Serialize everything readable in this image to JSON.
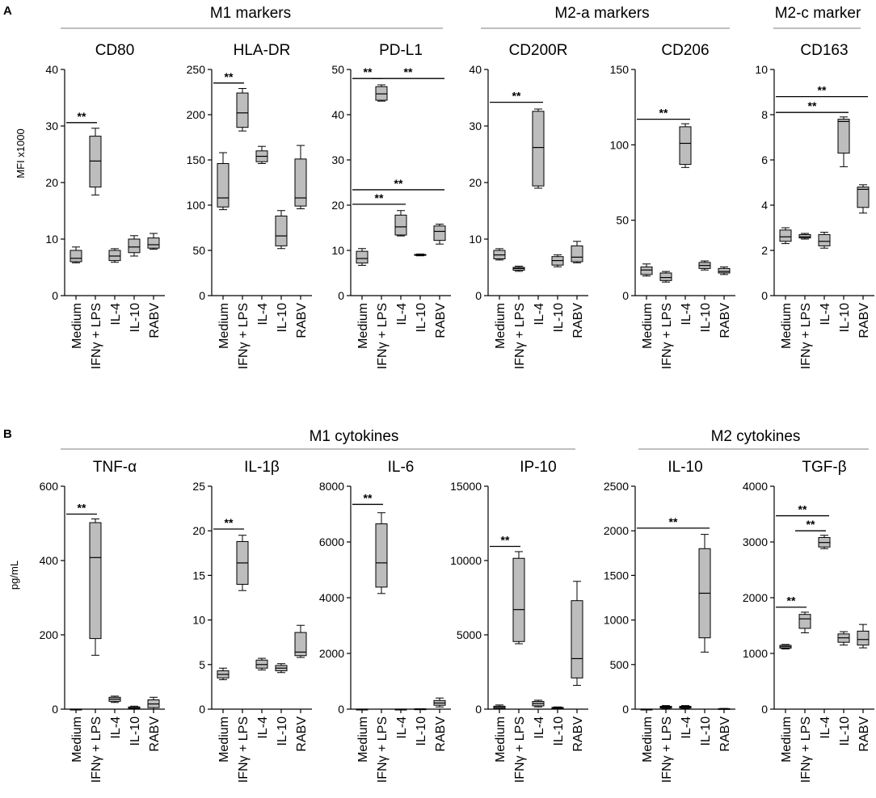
{
  "figure": {
    "category_labels": [
      "Medium",
      "IFNγ + LPS",
      "IL-4",
      "IL-10",
      "RABV"
    ]
  },
  "panels": [
    {
      "letter": "A",
      "ylabel": "MFI x1000",
      "groups": [
        {
          "label": "M1 markers"
        },
        {
          "label": "M2-a markers"
        },
        {
          "label": "M2-c marker"
        }
      ]
    },
    {
      "letter": "B",
      "ylabel": "pg/mL",
      "groups": [
        {
          "label": "M1 cytokines"
        },
        {
          "label": "M2 cytokines"
        }
      ]
    }
  ],
  "chart_data": [
    {
      "type": "box",
      "panel": "A",
      "title": "CD80",
      "ylim": [
        0,
        40
      ],
      "yticks": [
        0,
        10,
        20,
        30,
        40
      ],
      "categories": [
        "Medium",
        "IFNγ + LPS",
        "IL-4",
        "IL-10",
        "RABV"
      ],
      "boxes": [
        {
          "min": 5.8,
          "q1": 6.0,
          "median": 6.6,
          "q3": 8.0,
          "max": 8.6
        },
        {
          "min": 17.8,
          "q1": 19.2,
          "median": 23.8,
          "q3": 28.2,
          "max": 29.6
        },
        {
          "min": 5.9,
          "q1": 6.2,
          "median": 7.0,
          "q3": 8.0,
          "max": 8.3
        },
        {
          "min": 7.0,
          "q1": 7.6,
          "median": 8.6,
          "q3": 10.0,
          "max": 10.6
        },
        {
          "min": 8.2,
          "q1": 8.4,
          "median": 9.0,
          "q3": 10.2,
          "max": 11.0
        }
      ],
      "significance": [
        {
          "from": 0,
          "to": 1,
          "label": "**",
          "y": 30.6
        }
      ]
    },
    {
      "type": "box",
      "panel": "A",
      "title": "HLA-DR",
      "ylim": [
        0,
        250
      ],
      "yticks": [
        0,
        50,
        100,
        150,
        200,
        250
      ],
      "categories": [
        "Medium",
        "IFNγ + LPS",
        "IL-4",
        "IL-10",
        "RABV"
      ],
      "boxes": [
        {
          "min": 95,
          "q1": 98,
          "median": 108,
          "q3": 146,
          "max": 158
        },
        {
          "min": 182,
          "q1": 186,
          "median": 202,
          "q3": 224,
          "max": 229
        },
        {
          "min": 146,
          "q1": 148,
          "median": 154,
          "q3": 160,
          "max": 165
        },
        {
          "min": 52,
          "q1": 55,
          "median": 66,
          "q3": 88,
          "max": 94
        },
        {
          "min": 96,
          "q1": 99,
          "median": 108,
          "q3": 151,
          "max": 166
        }
      ],
      "significance": [
        {
          "from": 0,
          "to": 1,
          "label": "**",
          "y": 235
        }
      ]
    },
    {
      "type": "box",
      "panel": "A",
      "title": "PD-L1",
      "ylim": [
        0,
        50
      ],
      "yticks": [
        0,
        10,
        20,
        30,
        40,
        50
      ],
      "categories": [
        "Medium",
        "IFNγ + LPS",
        "IL-4",
        "IL-10",
        "RABV"
      ],
      "boxes": [
        {
          "min": 6.7,
          "q1": 7.2,
          "median": 8.2,
          "q3": 9.8,
          "max": 10.4
        },
        {
          "min": 43.0,
          "q1": 43.2,
          "median": 44.6,
          "q3": 46.2,
          "max": 46.6
        },
        {
          "min": 13.2,
          "q1": 13.4,
          "median": 15.2,
          "q3": 17.8,
          "max": 18.8
        },
        {
          "min": 8.8,
          "q1": 8.9,
          "median": 9.0,
          "q3": 9.1,
          "max": 9.2
        },
        {
          "min": 11.4,
          "q1": 12.2,
          "median": 14.2,
          "q3": 15.4,
          "max": 15.8
        }
      ],
      "significance": [
        {
          "from": 0,
          "to": 1,
          "label": "**",
          "y": 48.0
        },
        {
          "from": 1,
          "to": 4,
          "label": "**",
          "y": 48.0
        },
        {
          "from": 0,
          "to": 4,
          "label": "**",
          "y": 23.4
        },
        {
          "from": 0,
          "to": 2,
          "label": "**",
          "y": 20.2
        }
      ]
    },
    {
      "type": "box",
      "panel": "A",
      "title": "CD200R",
      "ylim": [
        0,
        40
      ],
      "yticks": [
        0,
        10,
        20,
        30,
        40
      ],
      "categories": [
        "Medium",
        "IFNγ + LPS",
        "IL-4",
        "IL-10",
        "RABV"
      ],
      "boxes": [
        {
          "min": 6.3,
          "q1": 6.5,
          "median": 7.2,
          "q3": 8.0,
          "max": 8.3
        },
        {
          "min": 4.3,
          "q1": 4.5,
          "median": 4.8,
          "q3": 5.0,
          "max": 5.2
        },
        {
          "min": 19.0,
          "q1": 19.4,
          "median": 26.2,
          "q3": 32.6,
          "max": 33.0
        },
        {
          "min": 5.1,
          "q1": 5.4,
          "median": 6.2,
          "q3": 6.9,
          "max": 7.2
        },
        {
          "min": 5.8,
          "q1": 6.0,
          "median": 6.8,
          "q3": 8.8,
          "max": 9.6
        }
      ],
      "significance": [
        {
          "from": 0,
          "to": 2,
          "label": "**",
          "y": 34.2
        }
      ]
    },
    {
      "type": "box",
      "panel": "A",
      "title": "CD206",
      "ylim": [
        0,
        150
      ],
      "yticks": [
        0,
        50,
        100,
        150
      ],
      "categories": [
        "Medium",
        "IFNγ + LPS",
        "IL-4",
        "IL-10",
        "RABV"
      ],
      "boxes": [
        {
          "min": 13,
          "q1": 14,
          "median": 17,
          "q3": 19,
          "max": 21
        },
        {
          "min": 9,
          "q1": 10,
          "median": 12,
          "q3": 15,
          "max": 16
        },
        {
          "min": 85,
          "q1": 87,
          "median": 101,
          "q3": 112,
          "max": 114
        },
        {
          "min": 17,
          "q1": 18,
          "median": 20,
          "q3": 22,
          "max": 23
        },
        {
          "min": 14,
          "q1": 15,
          "median": 16,
          "q3": 18,
          "max": 19
        }
      ],
      "significance": [
        {
          "from": 0,
          "to": 2,
          "label": "**",
          "y": 117
        }
      ]
    },
    {
      "type": "box",
      "panel": "A",
      "title": "CD163",
      "ylim": [
        0,
        10
      ],
      "yticks": [
        0,
        2,
        4,
        6,
        8,
        10
      ],
      "categories": [
        "Medium",
        "IFNγ + LPS",
        "IL-4",
        "IL-10",
        "RABV"
      ],
      "boxes": [
        {
          "min": 2.3,
          "q1": 2.4,
          "median": 2.6,
          "q3": 2.9,
          "max": 3.0
        },
        {
          "min": 2.5,
          "q1": 2.55,
          "median": 2.6,
          "q3": 2.7,
          "max": 2.75
        },
        {
          "min": 2.1,
          "q1": 2.2,
          "median": 2.4,
          "q3": 2.7,
          "max": 2.8
        },
        {
          "min": 5.7,
          "q1": 6.3,
          "median": 7.7,
          "q3": 7.8,
          "max": 7.9
        },
        {
          "min": 3.65,
          "q1": 3.9,
          "median": 4.7,
          "q3": 4.8,
          "max": 4.9
        }
      ],
      "significance": [
        {
          "from": 0,
          "to": 4,
          "label": "**",
          "y": 8.8
        },
        {
          "from": 0,
          "to": 3,
          "label": "**",
          "y": 8.1
        }
      ]
    },
    {
      "type": "box",
      "panel": "B",
      "title": "TNF-α",
      "ylim": [
        0,
        600
      ],
      "yticks": [
        0,
        200,
        400,
        600
      ],
      "categories": [
        "Medium",
        "IFNγ + LPS",
        "IL-4",
        "IL-10",
        "RABV"
      ],
      "boxes": [
        {
          "min": 0,
          "q1": 0,
          "median": 0,
          "q3": 0,
          "max": 0
        },
        {
          "min": 145,
          "q1": 190,
          "median": 408,
          "q3": 502,
          "max": 512
        },
        {
          "min": 18,
          "q1": 21,
          "median": 27,
          "q3": 32,
          "max": 35
        },
        {
          "min": 0,
          "q1": 1,
          "median": 3,
          "q3": 6,
          "max": 8
        },
        {
          "min": 0,
          "q1": 4,
          "median": 14,
          "q3": 25,
          "max": 32
        }
      ],
      "significance": [
        {
          "from": 0,
          "to": 1,
          "label": "**",
          "y": 525
        }
      ]
    },
    {
      "type": "box",
      "panel": "B",
      "title": "IL-1β",
      "ylim": [
        0,
        25
      ],
      "yticks": [
        0,
        5,
        10,
        15,
        20,
        25
      ],
      "categories": [
        "Medium",
        "IFNγ + LPS",
        "IL-4",
        "IL-10",
        "RABV"
      ],
      "boxes": [
        {
          "min": 3.3,
          "q1": 3.5,
          "median": 3.9,
          "q3": 4.3,
          "max": 4.6
        },
        {
          "min": 13.3,
          "q1": 14.0,
          "median": 16.4,
          "q3": 18.8,
          "max": 19.5
        },
        {
          "min": 4.4,
          "q1": 4.6,
          "median": 5.0,
          "q3": 5.5,
          "max": 5.7
        },
        {
          "min": 4.1,
          "q1": 4.3,
          "median": 4.6,
          "q3": 4.9,
          "max": 5.1
        },
        {
          "min": 5.8,
          "q1": 6.0,
          "median": 6.4,
          "q3": 8.6,
          "max": 9.4
        }
      ],
      "significance": [
        {
          "from": 0,
          "to": 1,
          "label": "**",
          "y": 20.2
        }
      ]
    },
    {
      "type": "box",
      "panel": "B",
      "title": "IL-6",
      "ylim": [
        0,
        8000
      ],
      "yticks": [
        0,
        2000,
        4000,
        6000,
        8000
      ],
      "categories": [
        "Medium",
        "IFNγ + LPS",
        "IL-4",
        "IL-10",
        "RABV"
      ],
      "boxes": [
        {
          "min": 0,
          "q1": 0,
          "median": 0,
          "q3": 0,
          "max": 0
        },
        {
          "min": 4150,
          "q1": 4380,
          "median": 5250,
          "q3": 6650,
          "max": 7050
        },
        {
          "min": 0,
          "q1": 0,
          "median": 0,
          "q3": 0,
          "max": 0
        },
        {
          "min": 0,
          "q1": 0,
          "median": 5,
          "q3": 10,
          "max": 15
        },
        {
          "min": 80,
          "q1": 140,
          "median": 220,
          "q3": 310,
          "max": 400
        }
      ],
      "significance": [
        {
          "from": 0,
          "to": 1,
          "label": "**",
          "y": 7350
        }
      ]
    },
    {
      "type": "box",
      "panel": "B",
      "title": "IP-10",
      "ylim": [
        0,
        15000
      ],
      "yticks": [
        0,
        5000,
        10000,
        15000
      ],
      "categories": [
        "Medium",
        "IFNγ + LPS",
        "IL-4",
        "IL-10",
        "RABV"
      ],
      "boxes": [
        {
          "min": 0,
          "q1": 40,
          "median": 120,
          "q3": 200,
          "max": 280
        },
        {
          "min": 4400,
          "q1": 4550,
          "median": 6700,
          "q3": 10150,
          "max": 10600
        },
        {
          "min": 150,
          "q1": 220,
          "median": 380,
          "q3": 520,
          "max": 600
        },
        {
          "min": 0,
          "q1": 30,
          "median": 80,
          "q3": 120,
          "max": 150
        },
        {
          "min": 1600,
          "q1": 2100,
          "median": 3400,
          "q3": 7300,
          "max": 8600
        }
      ],
      "significance": [
        {
          "from": 0,
          "to": 1,
          "label": "**",
          "y": 10950
        }
      ]
    },
    {
      "type": "box",
      "panel": "B",
      "title": "IL-10",
      "ylim": [
        0,
        2500
      ],
      "yticks": [
        0,
        500,
        1000,
        1500,
        2000,
        2500
      ],
      "categories": [
        "Medium",
        "IFNγ + LPS",
        "IL-4",
        "IL-10",
        "RABV"
      ],
      "boxes": [
        {
          "min": 0,
          "q1": 0,
          "median": 0,
          "q3": 0,
          "max": 0
        },
        {
          "min": 5,
          "q1": 12,
          "median": 22,
          "q3": 32,
          "max": 40
        },
        {
          "min": 5,
          "q1": 12,
          "median": 22,
          "q3": 32,
          "max": 40
        },
        {
          "min": 640,
          "q1": 800,
          "median": 1300,
          "q3": 1800,
          "max": 1960
        },
        {
          "min": 0,
          "q1": 0,
          "median": 3,
          "q3": 6,
          "max": 8
        }
      ],
      "significance": [
        {
          "from": 0,
          "to": 3,
          "label": "**",
          "y": 2030
        }
      ]
    },
    {
      "type": "box",
      "panel": "B",
      "title": "TGF-β",
      "ylim": [
        0,
        4000
      ],
      "yticks": [
        0,
        1000,
        2000,
        3000,
        4000
      ],
      "categories": [
        "Medium",
        "IFNγ + LPS",
        "IL-4",
        "IL-10",
        "RABV"
      ],
      "boxes": [
        {
          "min": 1080,
          "q1": 1095,
          "median": 1120,
          "q3": 1145,
          "max": 1160
        },
        {
          "min": 1370,
          "q1": 1450,
          "median": 1620,
          "q3": 1700,
          "max": 1740
        },
        {
          "min": 2880,
          "q1": 2910,
          "median": 2990,
          "q3": 3080,
          "max": 3120
        },
        {
          "min": 1150,
          "q1": 1200,
          "median": 1280,
          "q3": 1350,
          "max": 1390
        },
        {
          "min": 1100,
          "q1": 1150,
          "median": 1250,
          "q3": 1400,
          "max": 1520
        }
      ],
      "significance": [
        {
          "from": 0,
          "to": 2,
          "label": "**",
          "y": 3470
        },
        {
          "from": 1,
          "to": 2,
          "label": "**",
          "y": 3200
        },
        {
          "from": 0,
          "to": 1,
          "label": "**",
          "y": 1830
        }
      ]
    }
  ]
}
